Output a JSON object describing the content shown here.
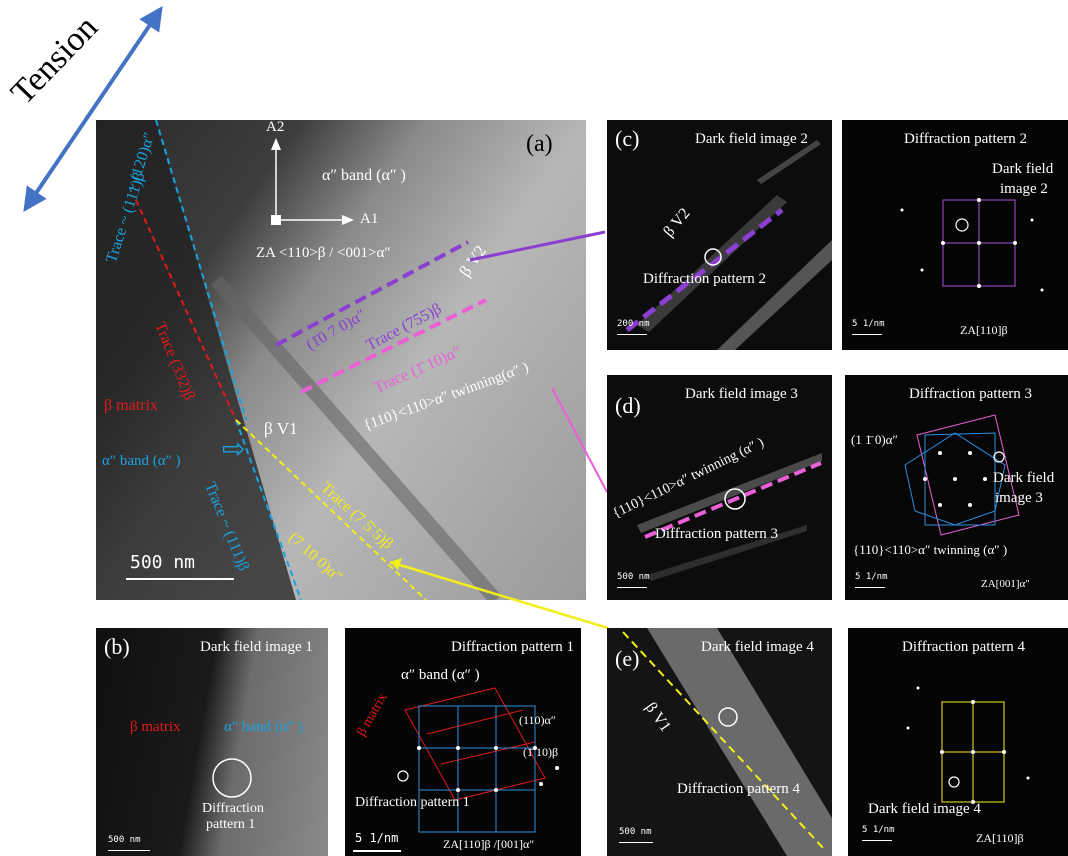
{
  "tension_label": "Tension",
  "panel_a": {
    "tag": "(a)",
    "axis_a2": "A2",
    "axis_a1": "A1",
    "band_label": "α″ band (α″ )",
    "zone_axis": "ZA <110>β / <001>α″",
    "trace_120": "~ (120)α″",
    "trace_111_top": "Trace ~ (111)β",
    "trace_332": "Trace (332)β",
    "beta_matrix": "β matrix",
    "alpha_band": "α″ band (α″ )",
    "trace_111_bottom": "Trace ~ (111)β",
    "beta_v1": "β V1",
    "trace_7_10_0": "(7 10 0)α″",
    "trace_7_5_5": "Trace (7 5̄ 5)β",
    "beta_v2": "β V2",
    "trace_10_7_0": "(1̄0 7 0)α″",
    "trace_755": "Trace (755)β",
    "trace_1_10": "Trace (1̄ 10)α″",
    "twinning": "{110}<110>α″ twinning(α″ )",
    "scale": "500 nm"
  },
  "panel_b": {
    "tag": "(b)",
    "title": "Dark field image 1",
    "beta_matrix": "β matrix",
    "alpha_band": "α″ band (α″ )",
    "circle_label_1": "Diffraction",
    "circle_label_2": "pattern 1",
    "scale": "500 nm"
  },
  "panel_b2": {
    "title": "Diffraction pattern 1",
    "alpha_band": "α″ band (α″ )",
    "beta_matrix": "β matrix",
    "refl_110": "(110)α″",
    "refl_1_10": "(1̄ 10)β",
    "circle_label": "Diffraction pattern 1",
    "scale": "5 1/nm",
    "zone_axis": "ZA[110]β /[001]α″"
  },
  "panel_c": {
    "tag": "(c)",
    "title": "Dark field image 2",
    "beta_v2": "β V2",
    "circle_label": "Diffraction pattern 2",
    "scale": "200 nm"
  },
  "panel_c2": {
    "title": "Diffraction pattern 2",
    "dark_field_1": "Dark field",
    "dark_field_2": "image 2",
    "scale": "5 1/nm",
    "zone_axis": "ZA[110]β"
  },
  "panel_d": {
    "tag": "(d)",
    "title": "Dark field image 3",
    "twinning": "{110}<110>α″ twinning (α″ )",
    "circle_label": "Diffraction pattern 3",
    "scale": "500 nm"
  },
  "panel_d2": {
    "title": "Diffraction pattern 3",
    "refl": "(1 1̄ 0)α″",
    "dark_field_1": "Dark field",
    "dark_field_2": "image 3",
    "twinning": "{110}<110>α″ twinning (α″ )",
    "scale": "5 1/nm",
    "zone_axis": "ZA[001]α″"
  },
  "panel_e": {
    "tag": "(e)",
    "title": "Dark field image 4",
    "beta_v1": "β V1",
    "circle_label": "Diffraction pattern 4",
    "scale": "500 nm"
  },
  "panel_e2": {
    "title": "Diffraction pattern 4",
    "dark_field": "Dark field image 4",
    "scale": "5 1/nm",
    "zone_axis": "ZA[110]β"
  },
  "colors": {
    "trace_blue": "#1aa3e0",
    "trace_red": "#e01b1b",
    "trace_yellow": "#f2ee1a",
    "trace_purple": "#8a3fd1",
    "trace_pink": "#e85fd8",
    "pattern_blue": "#2a8fe0"
  }
}
